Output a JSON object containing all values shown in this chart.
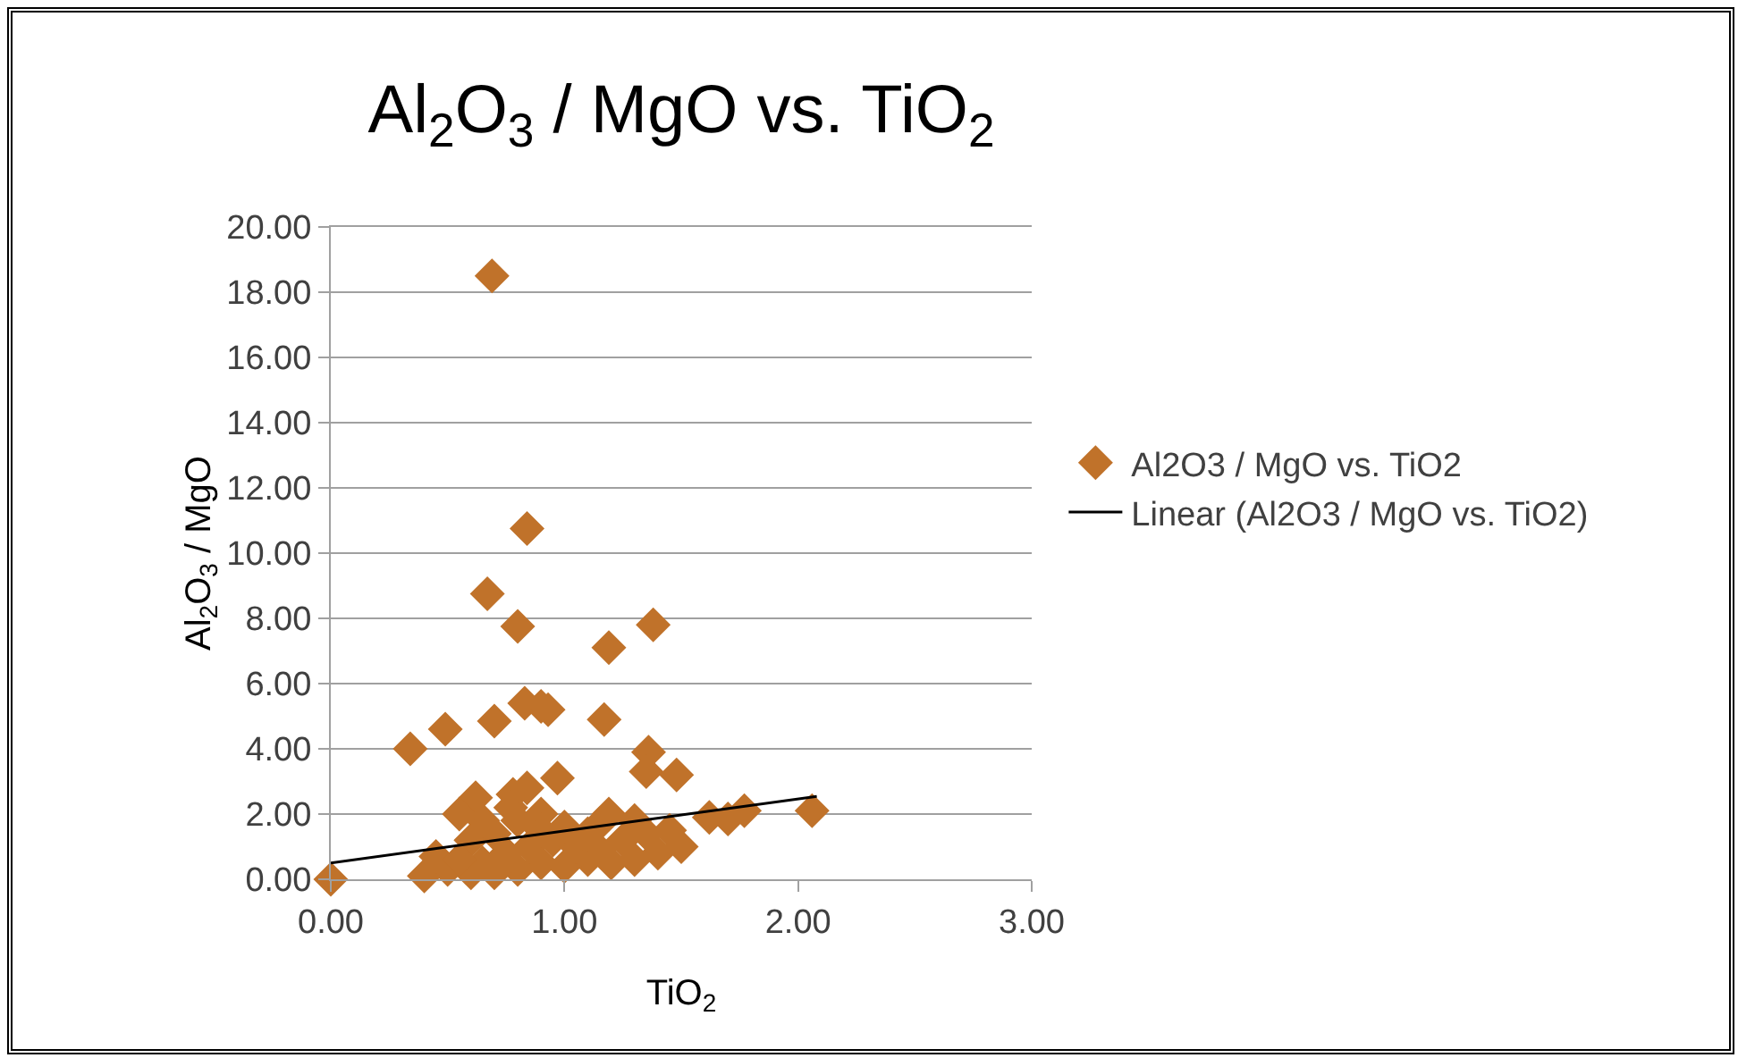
{
  "chart_data": {
    "type": "scatter",
    "title": "Al$_{2}$O$_{3}$ / MgO vs. TiO$_{2}$",
    "xlabel": "TiO$_{2}$",
    "ylabel": "Al$_{2}$O$_{3}$ / MgO",
    "xlim": [
      0,
      3
    ],
    "xticks": [
      {
        "value": 0,
        "label": "0.00"
      },
      {
        "value": 1,
        "label": "1.00"
      },
      {
        "value": 2,
        "label": "2.00"
      },
      {
        "value": 3,
        "label": "3.00"
      }
    ],
    "ylim": [
      0,
      20
    ],
    "yticks": [
      {
        "value": 0,
        "label": "0.00"
      },
      {
        "value": 2,
        "label": "2.00"
      },
      {
        "value": 4,
        "label": "4.00"
      },
      {
        "value": 6,
        "label": "6.00"
      },
      {
        "value": 8,
        "label": "8.00"
      },
      {
        "value": 10,
        "label": "10.00"
      },
      {
        "value": 12,
        "label": "12.00"
      },
      {
        "value": 14,
        "label": "14.00"
      },
      {
        "value": 16,
        "label": "16.00"
      },
      {
        "value": 18,
        "label": "18.00"
      },
      {
        "value": 20,
        "label": "20.00"
      }
    ],
    "grid": "y",
    "legend": "right",
    "marker": "diamond",
    "series": [
      {
        "name": "Al2O3 / MgO vs. TiO2",
        "color": "#c0722a",
        "x": [
          0.69,
          0.84,
          0.67,
          0.8,
          1.19,
          1.38,
          0.83,
          0.9,
          0.93,
          0.7,
          1.17,
          0.49,
          0.34,
          1.36,
          1.35,
          1.48,
          0.0,
          2.06,
          1.77,
          1.7,
          1.62,
          0.97,
          0.62,
          0.55,
          0.78,
          0.84,
          0.77,
          0.9,
          1.19,
          1.15,
          1.3,
          1.45,
          1.5,
          1.4,
          1.2,
          1.1,
          1.0,
          0.9,
          0.8,
          0.7,
          0.6,
          0.5,
          0.4,
          0.45,
          0.65,
          0.75,
          0.85,
          0.95,
          1.05,
          1.15,
          1.25,
          1.3,
          1.0,
          0.6,
          0.7,
          0.9,
          1.1,
          0.55,
          1.35,
          0.8,
          0.65
        ],
        "values": [
          18.5,
          10.75,
          8.75,
          7.75,
          7.1,
          7.8,
          5.4,
          5.3,
          5.2,
          4.85,
          4.9,
          4.6,
          4.0,
          3.9,
          3.3,
          3.2,
          0.0,
          2.1,
          2.1,
          1.85,
          1.9,
          3.1,
          2.5,
          2.0,
          2.6,
          2.8,
          2.2,
          2.0,
          2.0,
          1.7,
          1.8,
          1.5,
          1.0,
          0.8,
          0.5,
          0.6,
          0.4,
          0.5,
          0.3,
          0.2,
          0.2,
          0.3,
          0.1,
          0.7,
          0.5,
          0.8,
          1.0,
          1.2,
          1.0,
          0.9,
          1.2,
          0.6,
          1.6,
          1.2,
          1.4,
          1.5,
          1.4,
          0.6,
          1.4,
          1.8,
          1.8
        ]
      },
      {
        "name": "Linear (Al2O3 / MgO vs. TiO2)",
        "type": "line",
        "marker": "none",
        "color": "#000000",
        "x": [
          0,
          2.08
        ],
        "values": [
          0.5,
          2.54
        ]
      }
    ]
  }
}
